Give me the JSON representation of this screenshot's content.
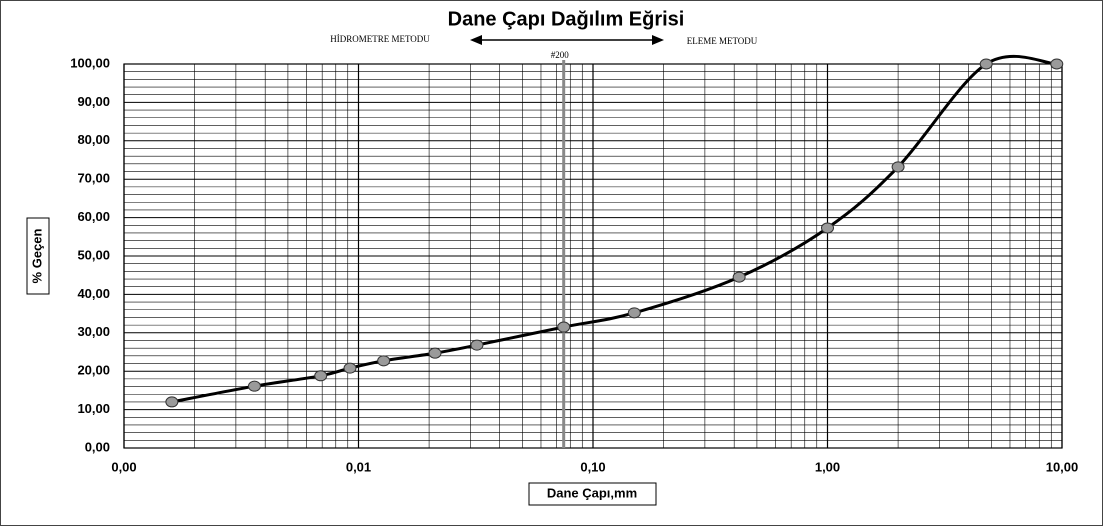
{
  "chart_data": {
    "type": "line",
    "title": "Dane Çapı Dağılım Eğrisi",
    "xlabel": "Dane Çapı,mm",
    "ylabel": "% Geçen",
    "xscale": "log",
    "grid": true,
    "minor_grid": true,
    "xlim": [
      0.001,
      10
    ],
    "ylim": [
      0,
      100
    ],
    "xticks": [
      {
        "value": 0.001,
        "label": "0,00"
      },
      {
        "value": 0.01,
        "label": "0,01"
      },
      {
        "value": 0.1,
        "label": "0,10"
      },
      {
        "value": 1,
        "label": "1,00"
      },
      {
        "value": 10,
        "label": "10,00"
      }
    ],
    "yticks": [
      {
        "value": 0,
        "label": "0,00"
      },
      {
        "value": 10,
        "label": "10,00"
      },
      {
        "value": 20,
        "label": "20,00"
      },
      {
        "value": 30,
        "label": "30,00"
      },
      {
        "value": 40,
        "label": "40,00"
      },
      {
        "value": 50,
        "label": "50,00"
      },
      {
        "value": 60,
        "label": "60,00"
      },
      {
        "value": 70,
        "label": "70,00"
      },
      {
        "value": 80,
        "label": "80,00"
      },
      {
        "value": 90,
        "label": "90,00"
      },
      {
        "value": 100,
        "label": "100,00"
      }
    ],
    "annotations": [
      {
        "text": "HİDROMETRE METODU"
      },
      {
        "text": "ELEME METODU"
      },
      {
        "text": "#200",
        "x": 0.075
      }
    ],
    "series": [
      {
        "color": "#000000",
        "marker_color": "#9a9a9a",
        "x": [
          0.0016,
          0.0036,
          0.0069,
          0.0092,
          0.0128,
          0.0212,
          0.032,
          0.075,
          0.15,
          0.42,
          1.0,
          2.0,
          4.75,
          9.5
        ],
        "values": [
          12.0,
          16.1,
          18.8,
          20.8,
          22.7,
          24.7,
          26.8,
          31.5,
          35.2,
          44.5,
          57.3,
          73.2,
          100,
          100
        ]
      }
    ]
  }
}
